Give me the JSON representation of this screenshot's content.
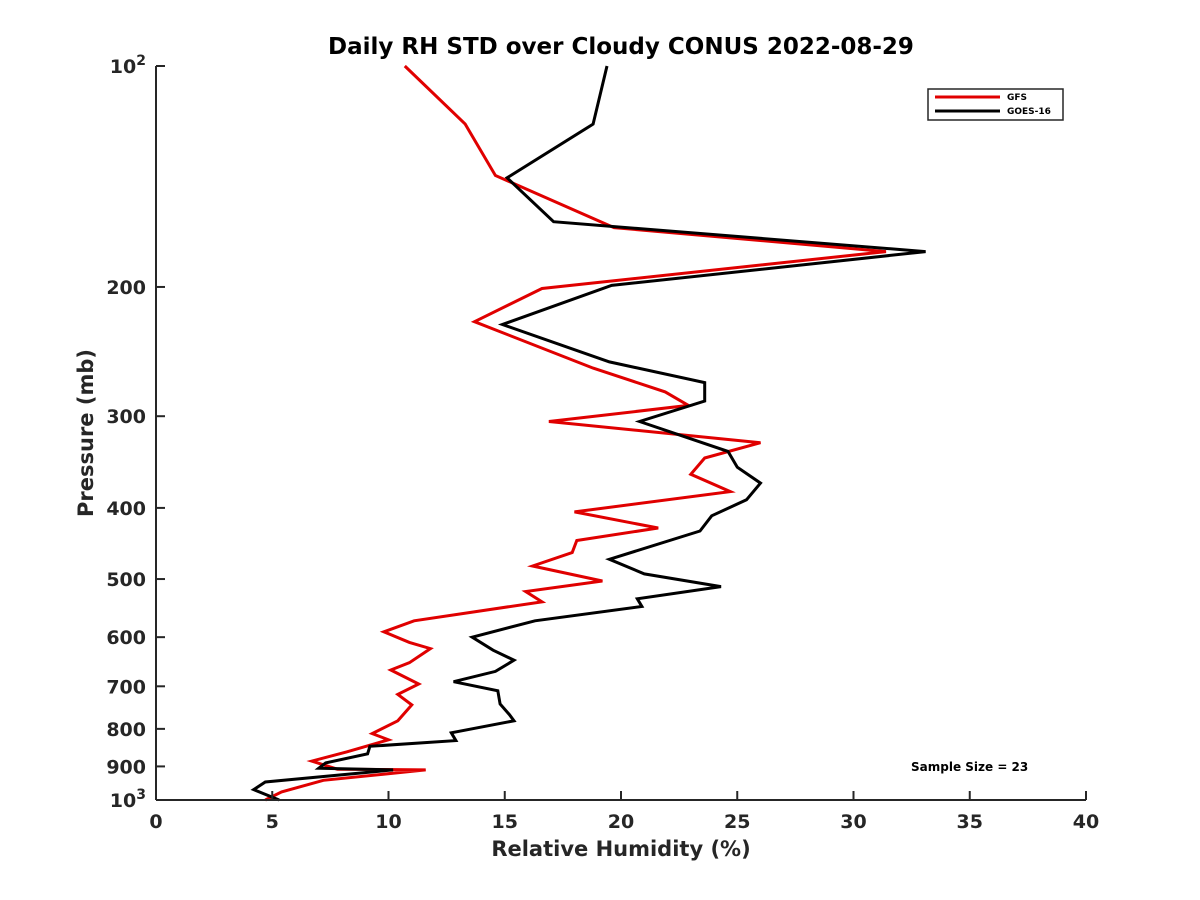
{
  "chart_data": {
    "type": "line",
    "title": "Daily RH STD over Cloudy CONUS 2022-08-29",
    "xlabel": "Relative Humidity (%)",
    "ylabel": "Pressure (mb)",
    "xlim": [
      0,
      40
    ],
    "ylim": [
      100,
      1000
    ],
    "y_scale": "log",
    "y_reversed": true,
    "grid": false,
    "legend_position": "top-right",
    "x_ticks": [
      "0",
      "5",
      "10",
      "15",
      "20",
      "25",
      "30",
      "35",
      "40"
    ],
    "x_tick_values": [
      0,
      5,
      10,
      15,
      20,
      25,
      30,
      35,
      40
    ],
    "y_ticks": [
      {
        "value": 100,
        "base": "10",
        "exp": "2"
      },
      {
        "value": 200,
        "base": "200",
        "exp": ""
      },
      {
        "value": 300,
        "base": "300",
        "exp": ""
      },
      {
        "value": 400,
        "base": "400",
        "exp": ""
      },
      {
        "value": 500,
        "base": "500",
        "exp": ""
      },
      {
        "value": 600,
        "base": "600",
        "exp": ""
      },
      {
        "value": 700,
        "base": "700",
        "exp": ""
      },
      {
        "value": 800,
        "base": "800",
        "exp": ""
      },
      {
        "value": 900,
        "base": "900",
        "exp": ""
      },
      {
        "value": 1000,
        "base": "10",
        "exp": "3"
      }
    ],
    "annotation": "Sample Size = 23",
    "series": [
      {
        "name": "GFS",
        "color": "#e00000",
        "x": [
          10.7,
          13.3,
          14.6,
          19.7,
          31.4,
          16.6,
          13.7,
          18.8,
          21.9,
          22.9,
          16.9,
          26.0,
          23.6,
          23.0,
          24.7,
          18.0,
          21.6,
          18.1,
          17.9,
          16.2,
          19.2,
          15.9,
          16.6,
          11.1,
          9.8,
          10.9,
          11.8,
          10.9,
          10.1,
          11.3,
          10.4,
          11.0,
          10.4,
          9.3,
          10.0,
          8.2,
          6.7,
          7.8,
          11.6,
          7.2,
          5.4,
          4.7
        ],
        "y": [
          100,
          120,
          141,
          166,
          179,
          201,
          223,
          258,
          278,
          290,
          305,
          326,
          342,
          360,
          380,
          405,
          426,
          443,
          460,
          480,
          503,
          520,
          537,
          570,
          590,
          610,
          622,
          650,
          665,
          695,
          718,
          742,
          780,
          812,
          828,
          860,
          885,
          908,
          910,
          940,
          975,
          1000
        ]
      },
      {
        "name": "GOES-16",
        "color": "#000000",
        "x": [
          19.4,
          18.8,
          15.1,
          17.1,
          33.1,
          19.6,
          14.9,
          19.5,
          23.6,
          23.6,
          20.8,
          24.6,
          25.0,
          26.0,
          25.4,
          23.9,
          23.4,
          19.5,
          21.0,
          24.3,
          20.7,
          20.9,
          16.3,
          13.6,
          14.5,
          15.4,
          14.6,
          12.8,
          14.7,
          14.8,
          15.2,
          15.4,
          12.7,
          12.9,
          9.2,
          9.1,
          7.3,
          7.0,
          10.2,
          4.7,
          4.2,
          5.3
        ],
        "y": [
          100,
          120,
          142,
          163,
          179,
          199,
          225,
          253,
          270,
          286,
          305,
          335,
          352,
          370,
          390,
          410,
          430,
          470,
          492,
          512,
          532,
          545,
          570,
          600,
          625,
          645,
          668,
          690,
          710,
          740,
          765,
          780,
          810,
          830,
          845,
          865,
          890,
          905,
          910,
          945,
          968,
          1000
        ]
      }
    ]
  }
}
